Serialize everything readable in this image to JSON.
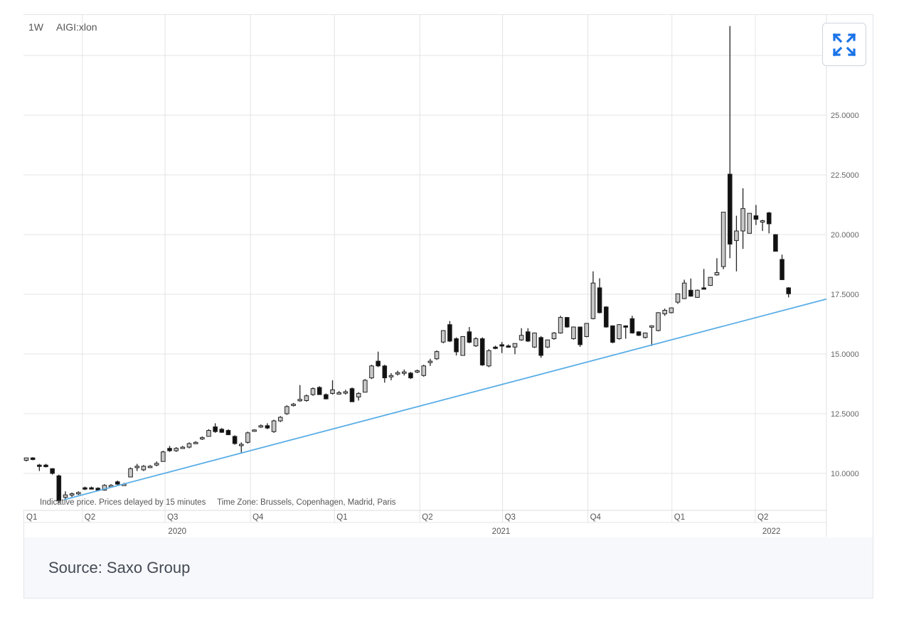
{
  "header": {
    "interval": "1W",
    "symbol": "AIGI:xlon"
  },
  "note": {
    "delay": "Indicative price. Prices delayed by 15 minutes",
    "timezone": "Time Zone: Brussels, Copenhagen, Madrid, Paris"
  },
  "footer": {
    "source": "Source: Saxo Group"
  },
  "colors": {
    "trendline": "#5aaee6",
    "up_fill": "#c8c8c8",
    "down_fill": "#111111",
    "grid": "#e4e4e4",
    "accent": "#1a73e8"
  },
  "chart_data": {
    "type": "candlestick",
    "title": "AIGI:xlon",
    "interval": "1W",
    "ylim": [
      8.45,
      29.17
    ],
    "y_ticks": [
      {
        "value": 10,
        "label": "10.0000"
      },
      {
        "value": 12.5,
        "label": "12.5000"
      },
      {
        "value": 15,
        "label": "15.0000"
      },
      {
        "value": 17.5,
        "label": "17.5000"
      },
      {
        "value": 20,
        "label": "20.0000"
      },
      {
        "value": 22.5,
        "label": "22.5000"
      },
      {
        "value": 25,
        "label": "25.0000"
      }
    ],
    "grid_extra_values": [
      27.5
    ],
    "quarters": [
      {
        "label": "Q1",
        "week": 0
      },
      {
        "label": "Q2",
        "week": 8.6
      },
      {
        "label": "Q3",
        "week": 21.3
      },
      {
        "label": "Q4",
        "week": 34.4
      },
      {
        "label": "Q1",
        "week": 47.3
      },
      {
        "label": "Q2",
        "week": 60.4
      },
      {
        "label": "Q3",
        "week": 73.1
      },
      {
        "label": "Q4",
        "week": 86.2
      },
      {
        "label": "Q1",
        "week": 99.1
      },
      {
        "label": "Q2",
        "week": 111.9
      }
    ],
    "years": [
      {
        "label": "2020",
        "week": 23.3
      },
      {
        "label": "2021",
        "week": 73
      },
      {
        "label": "2022",
        "week": 114.5
      }
    ],
    "trendline": [
      {
        "week": 5.8,
        "value": 8.9
      },
      {
        "week": 122.8,
        "value": 17.3
      }
    ],
    "ohlc_fields": [
      "open",
      "high",
      "low",
      "close"
    ],
    "candles": [
      [
        10.55,
        10.65,
        10.5,
        10.65
      ],
      [
        10.65,
        10.68,
        10.55,
        10.58
      ],
      [
        10.35,
        10.4,
        10.1,
        10.33
      ],
      [
        10.35,
        10.4,
        10.25,
        10.28
      ],
      [
        10.2,
        10.22,
        9.95,
        10.0
      ],
      [
        9.9,
        9.95,
        8.75,
        8.85
      ],
      [
        9.0,
        9.25,
        8.95,
        9.1
      ],
      [
        9.1,
        9.2,
        9.0,
        9.15
      ],
      [
        9.15,
        9.25,
        9.1,
        9.2
      ],
      [
        9.4,
        9.45,
        9.3,
        9.35
      ],
      [
        9.4,
        9.45,
        9.35,
        9.38
      ],
      [
        9.38,
        9.42,
        9.25,
        9.3
      ],
      [
        9.3,
        9.55,
        9.28,
        9.5
      ],
      [
        9.45,
        9.55,
        9.4,
        9.5
      ],
      [
        9.65,
        9.7,
        9.5,
        9.55
      ],
      [
        9.55,
        9.6,
        9.5,
        9.55
      ],
      [
        9.85,
        10.25,
        9.85,
        10.2
      ],
      [
        10.25,
        10.4,
        10.1,
        10.3
      ],
      [
        10.15,
        10.35,
        10.1,
        10.3
      ],
      [
        10.3,
        10.35,
        10.25,
        10.3
      ],
      [
        10.35,
        10.5,
        10.3,
        10.42
      ],
      [
        10.5,
        10.95,
        10.5,
        10.9
      ],
      [
        11.05,
        11.15,
        10.9,
        10.95
      ],
      [
        10.95,
        11.1,
        10.9,
        11.05
      ],
      [
        11.1,
        11.15,
        11.05,
        11.1
      ],
      [
        11.1,
        11.3,
        11.05,
        11.25
      ],
      [
        11.3,
        11.35,
        11.25,
        11.3
      ],
      [
        11.45,
        11.55,
        11.4,
        11.5
      ],
      [
        11.55,
        11.85,
        11.55,
        11.8
      ],
      [
        11.95,
        12.1,
        11.7,
        11.75
      ],
      [
        11.85,
        11.9,
        11.7,
        11.72
      ],
      [
        11.8,
        11.85,
        11.6,
        11.62
      ],
      [
        11.55,
        11.6,
        11.2,
        11.25
      ],
      [
        11.2,
        11.3,
        10.85,
        11.22
      ],
      [
        11.3,
        11.75,
        11.25,
        11.7
      ],
      [
        11.8,
        11.85,
        11.75,
        11.82
      ],
      [
        11.95,
        12.05,
        11.9,
        12.0
      ],
      [
        12.0,
        12.1,
        11.85,
        11.9
      ],
      [
        11.75,
        12.25,
        11.7,
        12.2
      ],
      [
        12.2,
        12.4,
        12.15,
        12.35
      ],
      [
        12.5,
        12.85,
        12.45,
        12.8
      ],
      [
        12.85,
        12.95,
        12.8,
        12.9
      ],
      [
        13.1,
        13.7,
        13.0,
        13.1
      ],
      [
        13.05,
        13.3,
        13.0,
        13.25
      ],
      [
        13.3,
        13.6,
        13.25,
        13.55
      ],
      [
        13.6,
        13.65,
        13.3,
        13.3
      ],
      [
        13.3,
        13.35,
        13.1,
        13.12
      ],
      [
        13.35,
        13.9,
        13.3,
        13.5
      ],
      [
        13.35,
        13.45,
        13.3,
        13.38
      ],
      [
        13.4,
        13.5,
        13.3,
        13.42
      ],
      [
        13.55,
        13.6,
        13.0,
        13.0
      ],
      [
        13.2,
        13.4,
        13.05,
        13.35
      ],
      [
        13.4,
        13.95,
        13.4,
        13.9
      ],
      [
        14.0,
        14.55,
        13.95,
        14.5
      ],
      [
        14.7,
        15.1,
        14.45,
        14.5
      ],
      [
        14.5,
        14.55,
        13.8,
        14.0
      ],
      [
        14.1,
        14.2,
        13.9,
        14.1
      ],
      [
        14.2,
        14.3,
        14.1,
        14.22
      ],
      [
        14.25,
        14.35,
        14.1,
        14.25
      ],
      [
        14.2,
        14.25,
        13.95,
        14.0
      ],
      [
        14.3,
        14.35,
        14.2,
        14.3
      ],
      [
        14.1,
        14.55,
        14.05,
        14.5
      ],
      [
        14.65,
        14.8,
        14.5,
        14.7
      ],
      [
        14.8,
        15.15,
        14.75,
        15.1
      ],
      [
        15.5,
        16.0,
        15.45,
        15.98
      ],
      [
        16.23,
        16.38,
        15.5,
        15.54
      ],
      [
        15.64,
        15.7,
        14.94,
        15.09
      ],
      [
        14.94,
        15.75,
        14.94,
        15.73
      ],
      [
        15.93,
        16.13,
        15.45,
        15.49
      ],
      [
        15.34,
        15.7,
        15.3,
        15.64
      ],
      [
        15.64,
        15.7,
        14.5,
        14.54
      ],
      [
        14.5,
        15.2,
        14.45,
        15.14
      ],
      [
        15.29,
        15.35,
        15.2,
        15.27
      ],
      [
        15.39,
        15.5,
        15.04,
        15.37
      ],
      [
        15.34,
        15.4,
        15.3,
        15.33
      ],
      [
        15.29,
        15.44,
        14.99,
        15.44
      ],
      [
        15.59,
        16.08,
        15.55,
        15.78
      ],
      [
        15.93,
        16.08,
        15.5,
        15.54
      ],
      [
        15.29,
        15.9,
        15.25,
        15.88
      ],
      [
        15.69,
        15.75,
        14.84,
        14.94
      ],
      [
        15.29,
        15.6,
        15.25,
        15.59
      ],
      [
        15.64,
        15.92,
        15.6,
        15.88
      ],
      [
        15.88,
        16.6,
        15.85,
        16.53
      ],
      [
        16.53,
        16.55,
        16.1,
        16.13
      ],
      [
        15.64,
        16.15,
        15.6,
        16.13
      ],
      [
        16.13,
        16.15,
        15.3,
        15.39
      ],
      [
        15.73,
        16.3,
        15.7,
        16.28
      ],
      [
        16.48,
        18.46,
        16.45,
        17.97
      ],
      [
        17.77,
        18.17,
        16.7,
        16.73
      ],
      [
        16.97,
        17.0,
        16.1,
        16.13
      ],
      [
        16.18,
        16.2,
        15.45,
        15.49
      ],
      [
        15.64,
        16.25,
        15.6,
        16.23
      ],
      [
        16.18,
        16.2,
        15.64,
        16.16
      ],
      [
        16.48,
        16.6,
        15.85,
        15.88
      ],
      [
        15.93,
        15.95,
        15.75,
        15.78
      ],
      [
        15.69,
        15.9,
        15.65,
        15.88
      ],
      [
        16.13,
        16.2,
        15.34,
        16.18
      ],
      [
        15.98,
        16.75,
        15.95,
        16.73
      ],
      [
        16.68,
        16.9,
        16.6,
        16.83
      ],
      [
        16.73,
        16.95,
        16.7,
        16.93
      ],
      [
        17.17,
        17.52,
        17.1,
        17.52
      ],
      [
        17.32,
        18.11,
        17.3,
        17.97
      ],
      [
        17.67,
        18.16,
        17.4,
        17.42
      ],
      [
        17.37,
        17.7,
        17.35,
        17.67
      ],
      [
        17.77,
        18.56,
        17.72,
        17.75
      ],
      [
        17.87,
        18.21,
        17.85,
        18.21
      ],
      [
        18.31,
        19.01,
        18.28,
        18.41
      ],
      [
        18.66,
        20.94,
        18.55,
        20.94
      ],
      [
        22.53,
        28.73,
        19.01,
        19.6
      ],
      [
        19.75,
        20.79,
        18.46,
        20.15
      ],
      [
        20.15,
        21.94,
        19.4,
        21.09
      ],
      [
        20.05,
        20.89,
        20.05,
        20.89
      ],
      [
        20.79,
        21.24,
        20.4,
        20.64
      ],
      [
        20.55,
        20.62,
        20.15,
        20.58
      ],
      [
        20.91,
        20.95,
        20.05,
        20.45
      ],
      [
        20.0,
        20.02,
        19.3,
        19.3
      ],
      [
        18.96,
        19.16,
        18.11,
        18.11
      ],
      [
        17.77,
        17.8,
        17.37,
        17.52
      ]
    ]
  }
}
